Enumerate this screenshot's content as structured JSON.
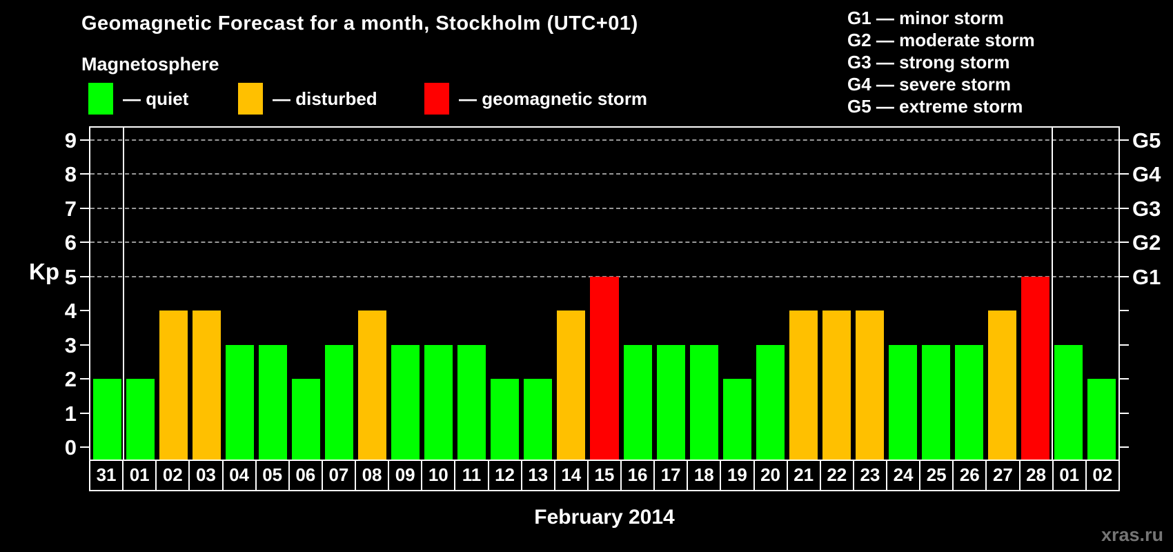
{
  "title": "Geomagnetic Forecast for a month, Stockholm (UTC+01)",
  "subtitle": "Magnetosphere",
  "legend": [
    {
      "text": "— quiet",
      "status": "quiet",
      "color": "#00ff00"
    },
    {
      "text": "— disturbed",
      "status": "disturbed",
      "color": "#ffc000"
    },
    {
      "text": "— geomagnetic storm",
      "status": "storm",
      "color": "#ff0000"
    }
  ],
  "status_colors": {
    "quiet": "#00ff00",
    "disturbed": "#ffc000",
    "storm": "#ff0000"
  },
  "storm_scale": [
    {
      "text": "G1 — minor storm"
    },
    {
      "text": "G2 — moderate storm"
    },
    {
      "text": "G3 — strong storm"
    },
    {
      "text": "G4 — severe storm"
    },
    {
      "text": "G5 — extreme storm"
    }
  ],
  "chart_data": {
    "type": "bar",
    "title": "Geomagnetic Forecast for a month, Stockholm (UTC+01)",
    "xlabel": "February 2014",
    "ylabel": "Kp",
    "ylim": [
      0,
      9
    ],
    "yticks": [
      0,
      1,
      2,
      3,
      4,
      5,
      6,
      7,
      8,
      9
    ],
    "grid": "dashed horizontal lines at Kp 5-9 only",
    "legend_position": "top",
    "categories": [
      "31",
      "01",
      "02",
      "03",
      "04",
      "05",
      "06",
      "07",
      "08",
      "09",
      "10",
      "11",
      "12",
      "13",
      "14",
      "15",
      "16",
      "17",
      "18",
      "19",
      "20",
      "21",
      "22",
      "23",
      "24",
      "25",
      "26",
      "27",
      "28",
      "01",
      "02"
    ],
    "values": [
      2,
      2,
      4,
      4,
      3,
      3,
      2,
      3,
      4,
      3,
      3,
      3,
      2,
      2,
      4,
      5,
      3,
      3,
      3,
      2,
      3,
      4,
      4,
      4,
      3,
      3,
      3,
      4,
      5,
      3,
      2
    ],
    "statuses": [
      "quiet",
      "quiet",
      "disturbed",
      "disturbed",
      "quiet",
      "quiet",
      "quiet",
      "quiet",
      "disturbed",
      "quiet",
      "quiet",
      "quiet",
      "quiet",
      "quiet",
      "disturbed",
      "storm",
      "quiet",
      "quiet",
      "quiet",
      "quiet",
      "quiet",
      "disturbed",
      "disturbed",
      "disturbed",
      "quiet",
      "quiet",
      "quiet",
      "disturbed",
      "storm",
      "quiet",
      "quiet"
    ],
    "g_levels": [
      {
        "kp": 5,
        "label": "G1"
      },
      {
        "kp": 6,
        "label": "G2"
      },
      {
        "kp": 7,
        "label": "G3"
      },
      {
        "kp": 8,
        "label": "G4"
      },
      {
        "kp": 9,
        "label": "G5"
      }
    ],
    "month_separator_indices": [
      1,
      29
    ]
  },
  "watermark": "xras.ru"
}
